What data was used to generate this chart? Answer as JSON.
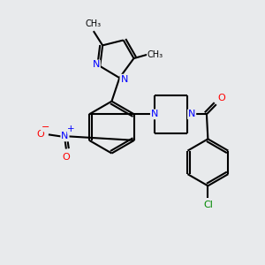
{
  "background_color": "#e8eaec",
  "bond_color": "#000000",
  "atom_colors": {
    "N": "#0000ff",
    "O": "#ff0000",
    "Cl": "#008800",
    "C": "#000000"
  },
  "figsize": [
    3.0,
    3.0
  ],
  "dpi": 100
}
